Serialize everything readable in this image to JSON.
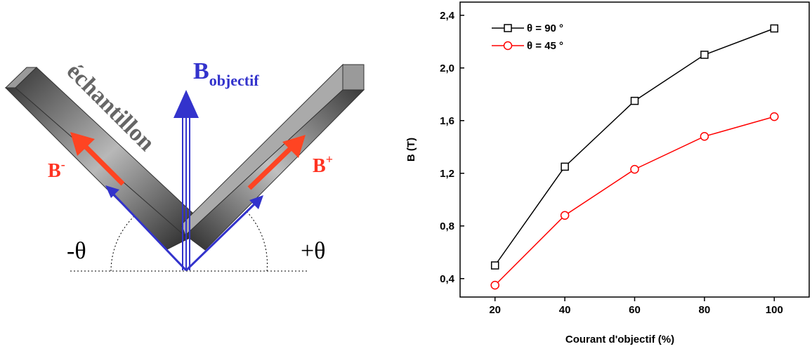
{
  "diagram": {
    "sample": "échantillon",
    "b_objective": {
      "symbol": "B",
      "subscript": "objectif"
    },
    "b_minus": {
      "symbol": "B",
      "superscript": "-"
    },
    "b_plus": {
      "symbol": "B",
      "superscript": "+"
    },
    "minus_theta": "-θ",
    "plus_theta": "+θ"
  },
  "chart_data": {
    "type": "line",
    "x_label": "Courant d'objectif (%)",
    "y_label": "B (T)",
    "x": [
      20,
      40,
      60,
      80,
      100
    ],
    "series": [
      {
        "name": "θ = 90 °",
        "color": "#000000",
        "marker": "square",
        "values": [
          0.5,
          1.25,
          1.75,
          2.1,
          2.3
        ]
      },
      {
        "name": "θ = 45 °",
        "color": "#ff0000",
        "marker": "circle",
        "values": [
          0.35,
          0.88,
          1.23,
          1.48,
          1.63
        ]
      }
    ],
    "xlim": [
      10,
      110
    ],
    "xticks": [
      20,
      40,
      60,
      80,
      100
    ],
    "ylim": [
      0.26,
      2.5
    ],
    "yticks": [
      {
        "value": 0.4,
        "label": "0,4"
      },
      {
        "value": 0.8,
        "label": "0,8"
      },
      {
        "value": 1.2,
        "label": "1,2"
      },
      {
        "value": 1.6,
        "label": "1,6"
      },
      {
        "value": 2.0,
        "label": "2,0"
      },
      {
        "value": 2.4,
        "label": "2,4"
      }
    ],
    "legend": "upper left",
    "grid": false
  }
}
